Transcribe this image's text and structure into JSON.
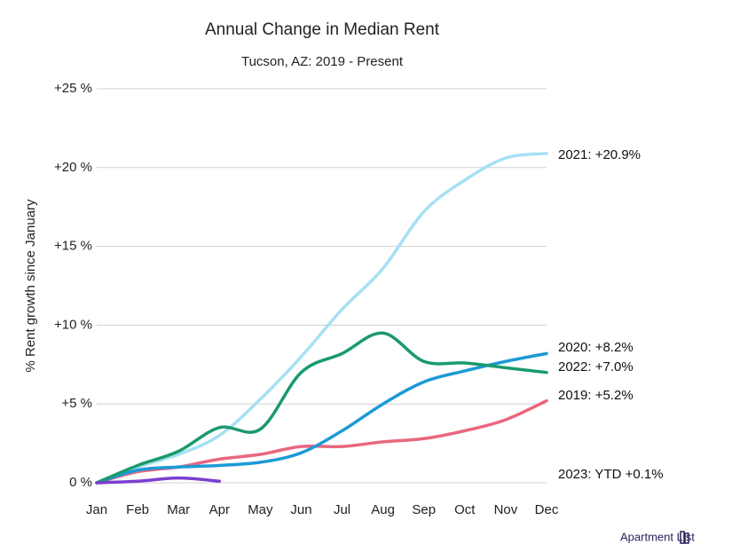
{
  "chart_data": {
    "type": "line",
    "title": "Annual Change in Median Rent",
    "subtitle": "Tucson, AZ: 2019 - Present",
    "y_label": "% Rent growth since January",
    "categories": [
      "Jan",
      "Feb",
      "Mar",
      "Apr",
      "May",
      "Jun",
      "Jul",
      "Aug",
      "Sep",
      "Oct",
      "Nov",
      "Dec"
    ],
    "ylim": [
      0,
      25
    ],
    "yticks": [
      {
        "value": 0,
        "label": "0 %"
      },
      {
        "value": 5,
        "label": "+5 %"
      },
      {
        "value": 10,
        "label": "+10 %"
      },
      {
        "value": 15,
        "label": "+15 %"
      },
      {
        "value": 20,
        "label": "+20 %"
      },
      {
        "value": 25,
        "label": "+25 %"
      }
    ],
    "grid": true,
    "series": [
      {
        "name": "2021",
        "color": "#a6e0f5",
        "values": [
          0,
          1.0,
          1.8,
          3.0,
          5.3,
          8.0,
          11.0,
          13.6,
          17.2,
          19.2,
          20.6,
          20.9
        ]
      },
      {
        "name": "2019",
        "color": "#e8677e",
        "values": [
          0,
          0.7,
          1.0,
          1.5,
          1.8,
          2.3,
          2.3,
          2.6,
          2.8,
          3.3,
          4.0,
          5.2
        ]
      },
      {
        "name": "2020",
        "color": "#1b9ad6",
        "values": [
          0,
          0.8,
          1.0,
          1.1,
          1.3,
          1.9,
          3.3,
          5.0,
          6.4,
          7.1,
          7.7,
          8.2
        ]
      },
      {
        "name": "2022",
        "color": "#1a9a6c",
        "values": [
          0,
          1.1,
          2.0,
          3.5,
          3.4,
          7.0,
          8.2,
          9.5,
          7.7,
          7.6,
          7.3,
          7.0
        ]
      },
      {
        "name": "2023",
        "color": "#7b3fd0",
        "values": [
          0,
          0.1,
          0.3,
          0.1,
          null,
          null,
          null,
          null,
          null,
          null,
          null,
          null
        ]
      }
    ],
    "annotations": [
      "2021: +20.9%",
      "2020: +8.2%",
      "2022: +7.0%",
      "2019: +5.2%",
      "2023: YTD +0.1%"
    ],
    "brand": "Apartment List"
  }
}
